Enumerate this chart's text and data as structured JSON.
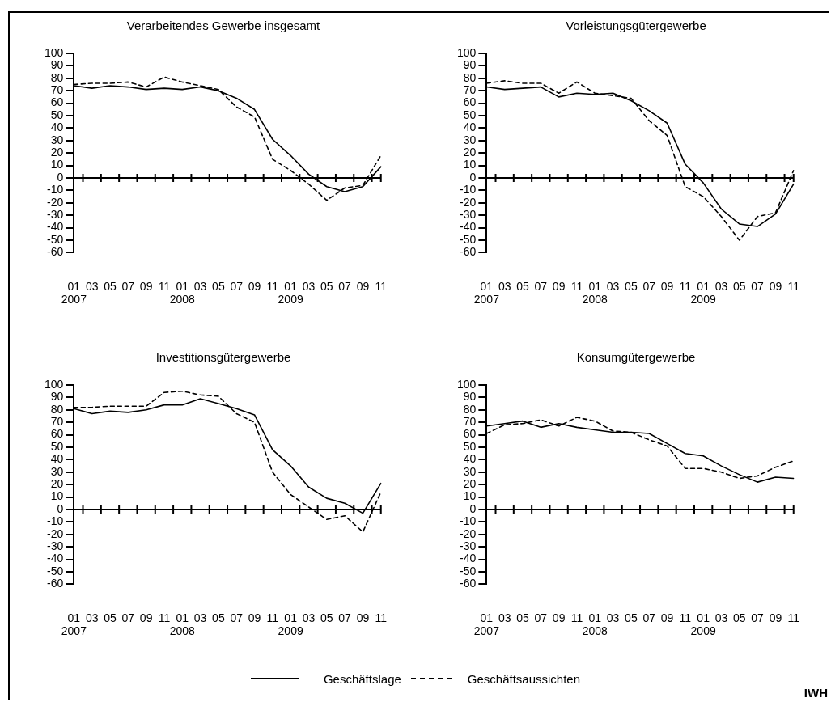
{
  "chart_data": [
    {
      "type": "line",
      "title": "Verarbeitendes Gewerbe insgesamt",
      "categories": [
        "01\n2007",
        "03",
        "05",
        "07",
        "09",
        "11",
        "01\n2008",
        "03",
        "05",
        "07",
        "09",
        "11",
        "01\n2009",
        "03",
        "05",
        "07",
        "09",
        "11"
      ],
      "ylim": [
        -60,
        100
      ],
      "yticks": [
        -60,
        -50,
        -40,
        -30,
        -20,
        -10,
        0,
        10,
        20,
        30,
        40,
        50,
        60,
        70,
        80,
        90,
        100
      ],
      "marker": "none",
      "legend": "bottom",
      "series": [
        {
          "name": "Geschäftslage",
          "color": "#000000",
          "line_style": "solid",
          "values": [
            74,
            72,
            74,
            73,
            71,
            72,
            71,
            73,
            70,
            64,
            55,
            31,
            18,
            3,
            -7,
            -11,
            -7,
            9
          ]
        },
        {
          "name": "Geschäftsaussichten",
          "color": "#000000",
          "line_style": "dashed",
          "values": [
            75,
            76,
            76,
            77,
            73,
            81,
            77,
            74,
            71,
            57,
            49,
            15,
            6,
            -5,
            -18,
            -8,
            -6,
            18
          ]
        }
      ]
    },
    {
      "type": "line",
      "title": "Vorleistungsgütergewerbe",
      "categories": [
        "01\n2007",
        "03",
        "05",
        "07",
        "09",
        "11",
        "01\n2008",
        "03",
        "05",
        "07",
        "09",
        "11",
        "01\n2009",
        "03",
        "05",
        "07",
        "09",
        "11"
      ],
      "ylim": [
        -60,
        100
      ],
      "yticks": [
        -60,
        -50,
        -40,
        -30,
        -20,
        -10,
        0,
        10,
        20,
        30,
        40,
        50,
        60,
        70,
        80,
        90,
        100
      ],
      "marker": "none",
      "series": [
        {
          "color": "#000000",
          "line_style": "solid",
          "values": [
            73,
            71,
            72,
            73,
            65,
            68,
            67,
            68,
            62,
            54,
            44,
            11,
            -4,
            -25,
            -37,
            -39,
            -29,
            -5
          ]
        },
        {
          "color": "#000000",
          "line_style": "dashed",
          "values": [
            76,
            78,
            76,
            76,
            68,
            77,
            68,
            66,
            64,
            46,
            34,
            -7,
            -15,
            -31,
            -50,
            -31,
            -28,
            6
          ]
        }
      ]
    },
    {
      "type": "line",
      "title": "Investitionsgütergewerbe",
      "categories": [
        "01\n2007",
        "03",
        "05",
        "07",
        "09",
        "11",
        "01\n2008",
        "03",
        "05",
        "07",
        "09",
        "11",
        "01\n2009",
        "03",
        "05",
        "07",
        "09",
        "11"
      ],
      "ylim": [
        -60,
        100
      ],
      "yticks": [
        -60,
        -50,
        -40,
        -30,
        -20,
        -10,
        0,
        10,
        20,
        30,
        40,
        50,
        60,
        70,
        80,
        90,
        100
      ],
      "marker": "none",
      "series": [
        {
          "color": "#000000",
          "line_style": "solid",
          "values": [
            81,
            77,
            79,
            78,
            80,
            84,
            84,
            89,
            85,
            81,
            76,
            48,
            35,
            18,
            9,
            5,
            -3,
            21
          ]
        },
        {
          "color": "#000000",
          "line_style": "dashed",
          "values": [
            82,
            82,
            83,
            83,
            83,
            94,
            95,
            92,
            91,
            77,
            70,
            30,
            12,
            2,
            -8,
            -5,
            -18,
            14
          ]
        }
      ]
    },
    {
      "type": "line",
      "title": "Konsumgütergewerbe",
      "categories": [
        "01\n2007",
        "03",
        "05",
        "07",
        "09",
        "11",
        "01\n2008",
        "03",
        "05",
        "07",
        "09",
        "11",
        "01\n2009",
        "03",
        "05",
        "07",
        "09",
        "11"
      ],
      "ylim": [
        -60,
        100
      ],
      "yticks": [
        -60,
        -50,
        -40,
        -30,
        -20,
        -10,
        0,
        10,
        20,
        30,
        40,
        50,
        60,
        70,
        80,
        90,
        100
      ],
      "marker": "none",
      "annotations": [
        "IWH"
      ],
      "series": [
        {
          "color": "#000000",
          "line_style": "solid",
          "values": [
            67,
            69,
            71,
            66,
            69,
            66,
            64,
            62,
            62,
            61,
            53,
            45,
            43,
            35,
            28,
            22,
            26,
            25
          ]
        },
        {
          "color": "#000000",
          "line_style": "dashed",
          "values": [
            61,
            68,
            69,
            72,
            67,
            74,
            71,
            63,
            62,
            56,
            51,
            33,
            33,
            30,
            25,
            27,
            34,
            39
          ]
        }
      ]
    }
  ]
}
